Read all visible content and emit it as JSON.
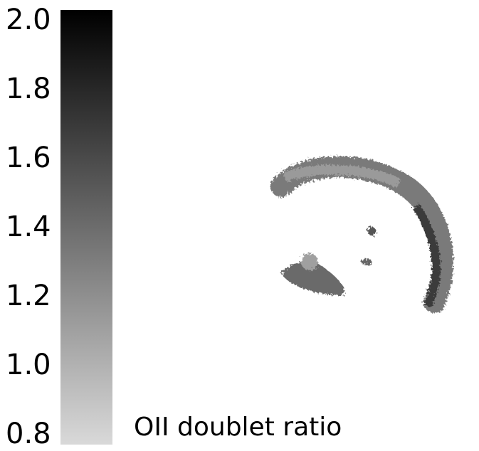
{
  "chart_data": {
    "type": "image",
    "label": "OII doublet ratio",
    "ylim": [
      0.8,
      2.0
    ],
    "yticks": [
      {
        "value": 0.8,
        "label": "0.8"
      },
      {
        "value": 1.0,
        "label": "1.0"
      },
      1.2,
      1.4,
      1.6,
      1.8,
      {
        "value": 2.0,
        "label": "2.0"
      }
    ],
    "colormap": [
      "#d9d9d9",
      "#000000"
    ]
  }
}
